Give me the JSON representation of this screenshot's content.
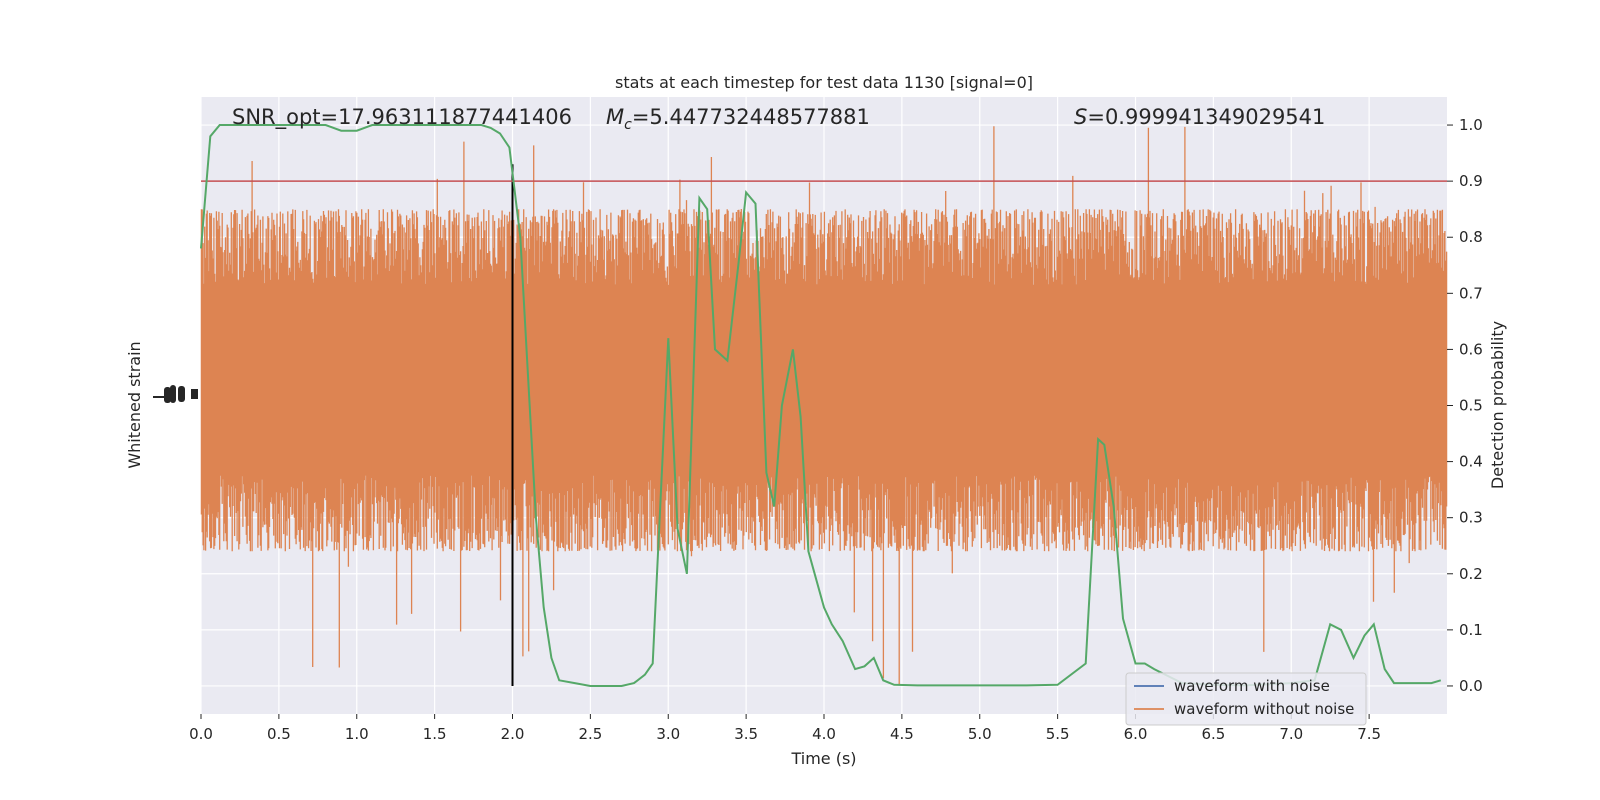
{
  "chart_data": {
    "type": "line",
    "title": "stats at each timestep for test data 1130 [signal=0]",
    "xlabel": "Time (s)",
    "ylabel_left": "Whitened strain",
    "ylabel_right": "Detection probability",
    "xlim": [
      0,
      8
    ],
    "ylim_right": [
      -0.05,
      1.05
    ],
    "x_ticks": [
      "0.0",
      "0.5",
      "1.0",
      "1.5",
      "2.0",
      "2.5",
      "3.0",
      "3.5",
      "4.0",
      "4.5",
      "5.0",
      "5.5",
      "6.0",
      "6.5",
      "7.0",
      "7.5"
    ],
    "x_tick_values": [
      0,
      0.5,
      1,
      1.5,
      2,
      2.5,
      3,
      3.5,
      4,
      4.5,
      5,
      5.5,
      6,
      6.5,
      7,
      7.5
    ],
    "y_right_ticks": [
      "0.0",
      "0.1",
      "0.2",
      "0.3",
      "0.4",
      "0.5",
      "0.6",
      "0.7",
      "0.8",
      "0.9",
      "1.0"
    ],
    "y_right_tick_values": [
      0,
      0.1,
      0.2,
      0.3,
      0.4,
      0.5,
      0.6,
      0.7,
      0.8,
      0.9,
      1.0
    ],
    "annotations": {
      "snr": "SNR_opt=17.963111877441406",
      "mc_prefix": "M",
      "mc_sub": "c",
      "mc_value": "=5.447732448577881",
      "s_prefix": "S",
      "s_value": "=0.999941349029541"
    },
    "threshold": {
      "y": 0.9,
      "color": "#c44e52"
    },
    "vline": {
      "x": 2.0,
      "color": "#000000"
    },
    "series": [
      {
        "name": "waveform with noise",
        "color": "#4c72b0",
        "axis": "left",
        "values": []
      },
      {
        "name": "waveform without noise",
        "color": "#dd8452",
        "axis": "left",
        "band": {
          "core": [
            0.39,
            0.7
          ],
          "common": [
            0.24,
            0.85
          ],
          "extreme": [
            0.0,
            1.0
          ]
        }
      },
      {
        "name": "detection probability",
        "color": "#55a868",
        "axis": "right",
        "x": [
          0,
          0.06,
          0.12,
          0.2,
          0.3,
          0.5,
          0.7,
          0.8,
          0.9,
          1.0,
          1.1,
          1.2,
          1.3,
          1.4,
          1.5,
          1.6,
          1.7,
          1.8,
          1.86,
          1.92,
          1.98,
          2.05,
          2.1,
          2.15,
          2.2,
          2.25,
          2.3,
          2.4,
          2.5,
          2.6,
          2.7,
          2.78,
          2.85,
          2.9,
          3.0,
          3.06,
          3.12,
          3.2,
          3.25,
          3.3,
          3.38,
          3.45,
          3.5,
          3.56,
          3.63,
          3.68,
          3.73,
          3.8,
          3.85,
          3.9,
          4.0,
          4.05,
          4.12,
          4.2,
          4.26,
          4.32,
          4.38,
          4.45,
          4.6,
          5.0,
          5.3,
          5.5,
          5.68,
          5.76,
          5.8,
          5.86,
          5.92,
          6.0,
          6.06,
          6.12,
          6.3,
          6.5,
          6.7,
          7.0,
          7.15,
          7.25,
          7.32,
          7.4,
          7.47,
          7.53,
          7.6,
          7.66,
          7.7,
          7.9,
          7.96
        ],
        "y": [
          0.78,
          0.98,
          1.0,
          1.0,
          1.0,
          1.0,
          1.0,
          1.0,
          0.99,
          0.99,
          1.0,
          1.0,
          1.0,
          1.0,
          1.0,
          1.0,
          1.0,
          1.0,
          0.995,
          0.985,
          0.96,
          0.8,
          0.55,
          0.3,
          0.14,
          0.05,
          0.01,
          0.005,
          0.0,
          0.0,
          0.0,
          0.005,
          0.02,
          0.04,
          0.62,
          0.28,
          0.2,
          0.87,
          0.85,
          0.6,
          0.58,
          0.75,
          0.88,
          0.86,
          0.38,
          0.32,
          0.5,
          0.6,
          0.48,
          0.24,
          0.14,
          0.11,
          0.08,
          0.03,
          0.035,
          0.05,
          0.01,
          0.002,
          0.001,
          0.001,
          0.001,
          0.002,
          0.04,
          0.44,
          0.43,
          0.32,
          0.12,
          0.04,
          0.04,
          0.03,
          0.005,
          0.002,
          0.001,
          0.005,
          0.01,
          0.11,
          0.1,
          0.05,
          0.09,
          0.11,
          0.03,
          0.005,
          0.005,
          0.005,
          0.01
        ]
      }
    ],
    "legend": {
      "placement": "lower-right",
      "entries": [
        "waveform with noise",
        "waveform without noise"
      ]
    },
    "grid": true,
    "background": "#eaeaf2",
    "grid_color": "#ffffff"
  }
}
